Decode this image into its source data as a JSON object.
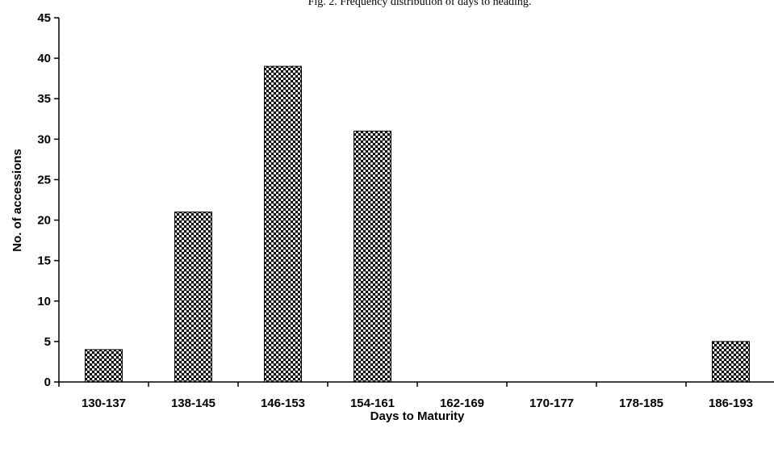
{
  "chart_data": {
    "type": "bar",
    "title": "Fig. 2. Frequency distribution of days to heading.",
    "xlabel": "Days to Maturity",
    "ylabel": "No. of accessions",
    "categories": [
      "130-137",
      "138-145",
      "146-153",
      "154-161",
      "162-169",
      "170-177",
      "178-185",
      "186-193"
    ],
    "values": [
      4,
      21,
      39,
      31,
      0,
      0,
      0,
      5
    ],
    "ylim": [
      0,
      45
    ],
    "yticks": [
      0,
      5,
      10,
      15,
      20,
      25,
      30,
      35,
      40,
      45
    ],
    "grid": false,
    "legend": "none",
    "bar_pattern": "checkered dotted black and white"
  }
}
